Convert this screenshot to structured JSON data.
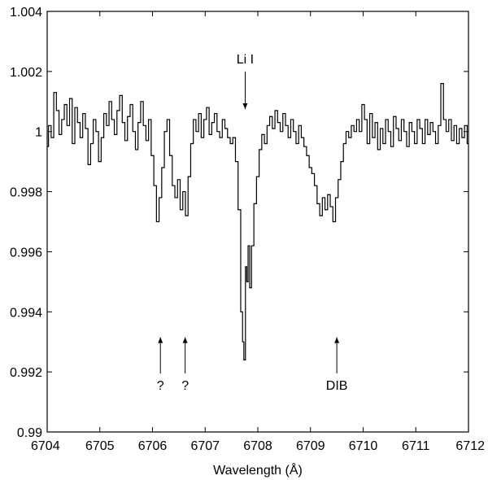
{
  "chart_data": {
    "type": "line",
    "title": "",
    "xlabel": "Wavelength (Å)",
    "ylabel": "",
    "xlim": [
      6704,
      6712
    ],
    "ylim": [
      0.99,
      1.004
    ],
    "grid": false,
    "legend": "none",
    "line_color": "#000000",
    "x_ticks": [
      6704,
      6705,
      6706,
      6707,
      6708,
      6709,
      6710,
      6711,
      6712
    ],
    "x_tick_labels": [
      "6704",
      "6705",
      "6706",
      "6707",
      "6708",
      "6709",
      "6710",
      "6711",
      "6712"
    ],
    "y_ticks": [
      0.99,
      0.992,
      0.994,
      0.996,
      0.998,
      1.0,
      1.002,
      1.004
    ],
    "y_tick_labels": [
      "0.99",
      "0.992",
      "0.994",
      "0.996",
      "0.998",
      "1",
      "1.002",
      "1.004"
    ],
    "annotations": [
      {
        "label": "Li I",
        "x": 6707.76,
        "y_top": 1.002,
        "y_bottom": 1.00075,
        "label_position": "above",
        "name": "annotation-li-i"
      },
      {
        "label": "?",
        "x": 6706.15,
        "y_top": 0.99315,
        "y_bottom": 0.99195,
        "label_position": "below",
        "name": "annotation-unknown-1"
      },
      {
        "label": "?",
        "x": 6706.62,
        "y_top": 0.99315,
        "y_bottom": 0.99195,
        "label_position": "below",
        "name": "annotation-unknown-2"
      },
      {
        "label": "DIB",
        "x": 6709.5,
        "y_top": 0.99315,
        "y_bottom": 0.99195,
        "label_position": "below",
        "name": "annotation-dib"
      }
    ],
    "series": [
      {
        "x": [
          6704.0,
          6704.05,
          6704.1,
          6704.15,
          6704.2,
          6704.25,
          6704.3,
          6704.35,
          6704.4,
          6704.45,
          6704.5,
          6704.55,
          6704.6,
          6704.65,
          6704.7,
          6704.75,
          6704.8,
          6704.85,
          6704.9,
          6704.95,
          6705.0,
          6705.05,
          6705.1,
          6705.15,
          6705.2,
          6705.25,
          6705.3,
          6705.35,
          6705.4,
          6705.45,
          6705.5,
          6705.55,
          6705.6,
          6705.65,
          6705.7,
          6705.75,
          6705.8,
          6705.85,
          6705.9,
          6705.95,
          6706.0,
          6706.05,
          6706.1,
          6706.15,
          6706.2,
          6706.25,
          6706.3,
          6706.35,
          6706.4,
          6706.45,
          6706.5,
          6706.55,
          6706.6,
          6706.65,
          6706.7,
          6706.75,
          6706.8,
          6706.85,
          6706.9,
          6706.95,
          6707.0,
          6707.05,
          6707.1,
          6707.15,
          6707.2,
          6707.25,
          6707.3,
          6707.35,
          6707.4,
          6707.45,
          6707.5,
          6707.55,
          6707.6,
          6707.65,
          6707.7,
          6707.72,
          6707.75,
          6707.78,
          6707.8,
          6707.83,
          6707.86,
          6707.9,
          6707.95,
          6708.0,
          6708.05,
          6708.1,
          6708.15,
          6708.2,
          6708.25,
          6708.3,
          6708.35,
          6708.4,
          6708.45,
          6708.5,
          6708.55,
          6708.6,
          6708.65,
          6708.7,
          6708.75,
          6708.8,
          6708.85,
          6708.9,
          6708.95,
          6709.0,
          6709.05,
          6709.1,
          6709.15,
          6709.2,
          6709.25,
          6709.3,
          6709.35,
          6709.4,
          6709.45,
          6709.5,
          6709.55,
          6709.6,
          6709.65,
          6709.7,
          6709.75,
          6709.8,
          6709.85,
          6709.9,
          6709.95,
          6710.0,
          6710.05,
          6710.1,
          6710.15,
          6710.2,
          6710.25,
          6710.3,
          6710.35,
          6710.4,
          6710.45,
          6710.5,
          6710.55,
          6710.6,
          6710.65,
          6710.7,
          6710.75,
          6710.8,
          6710.85,
          6710.9,
          6710.95,
          6711.0,
          6711.05,
          6711.1,
          6711.15,
          6711.2,
          6711.25,
          6711.3,
          6711.35,
          6711.4,
          6711.45,
          6711.5,
          6711.55,
          6711.6,
          6711.65,
          6711.7,
          6711.75,
          6711.8,
          6711.85,
          6711.9,
          6711.95,
          6712.0
        ],
        "y": [
          0.9995,
          1.0002,
          0.9998,
          1.0013,
          1.0007,
          0.9999,
          1.0004,
          1.0009,
          1.0002,
          1.0011,
          0.9996,
          1.0008,
          1.0003,
          0.9998,
          1.0006,
          1.0001,
          0.9989,
          0.9996,
          1.0004,
          1.0,
          0.999,
          0.9998,
          1.0006,
          1.0002,
          1.001,
          1.0004,
          0.9999,
          1.0007,
          1.0012,
          1.0003,
          0.9997,
          1.0005,
          1.0009,
          1.0,
          0.9994,
          1.0003,
          1.001,
          1.0002,
          0.9997,
          1.0004,
          0.9992,
          0.9982,
          0.997,
          0.9978,
          0.9988,
          1.0,
          1.0004,
          0.9992,
          0.9982,
          0.9978,
          0.9984,
          0.9974,
          0.998,
          0.9972,
          0.9985,
          0.9996,
          1.0004,
          1.0,
          1.0006,
          0.9998,
          1.0004,
          1.0008,
          0.9999,
          1.0003,
          1.0006,
          1.0,
          0.9998,
          1.0004,
          1.0001,
          0.9998,
          0.9996,
          0.9998,
          0.999,
          0.9974,
          0.994,
          0.993,
          0.9924,
          0.9955,
          0.995,
          0.9962,
          0.9948,
          0.9962,
          0.9976,
          0.9985,
          0.9994,
          0.9999,
          0.9996,
          1.0002,
          1.0005,
          1.0001,
          1.0007,
          1.0003,
          1.0,
          1.0006,
          1.0002,
          0.9998,
          1.0004,
          1.0,
          0.9996,
          1.0002,
          0.9998,
          0.9995,
          0.9992,
          0.9988,
          0.9986,
          0.9982,
          0.9976,
          0.9972,
          0.9978,
          0.9974,
          0.9979,
          0.9975,
          0.997,
          0.9978,
          0.9984,
          0.999,
          0.9996,
          1.0,
          0.9998,
          1.0002,
          1.0,
          1.0004,
          1.0,
          1.0009,
          1.0004,
          0.9996,
          1.0006,
          0.9998,
          1.0003,
          0.9994,
          1.0001,
          0.9996,
          1.0004,
          1.0,
          0.9995,
          1.0005,
          1.0001,
          0.9997,
          1.0004,
          1.0,
          0.9995,
          1.0003,
          1.0,
          0.9996,
          1.0004,
          1.0001,
          0.9996,
          1.0004,
          0.9999,
          1.0003,
          1.0,
          0.9996,
          1.0002,
          1.0016,
          1.0004,
          1.0,
          1.0004,
          0.9997,
          1.0002,
          0.9996,
          1.0001,
          0.9998,
          1.0002,
          0.9996
        ]
      }
    ]
  }
}
